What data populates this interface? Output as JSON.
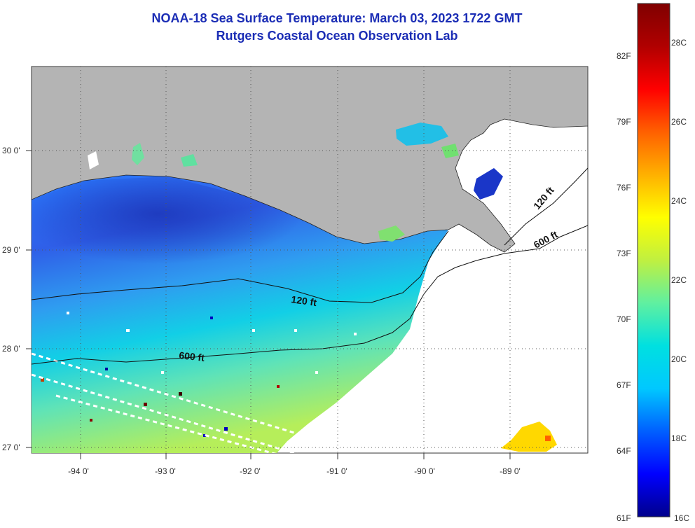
{
  "header": {
    "title_line1": "NOAA-18 Sea Surface Temperature:  March 03, 2023 1722 GMT",
    "title_line2": "Rutgers Coastal Ocean Observation Lab"
  },
  "map": {
    "lon_labels": [
      "-94 0'",
      "-93 0'",
      "-92 0'",
      "-91 0'",
      "-90 0'",
      "-89 0'"
    ],
    "lat_labels": [
      "30 0'",
      "29 0'",
      "28 0'",
      "27 0'"
    ],
    "contours": [
      {
        "label": "120 ft"
      },
      {
        "label": "600 ft"
      },
      {
        "label": "120 ft"
      },
      {
        "label": "600 ft"
      }
    ],
    "colors": {
      "land": "#b4b4b4",
      "no_data": "#ffffff"
    }
  },
  "colorbar": {
    "fahrenheit_labels": [
      "82F",
      "79F",
      "76F",
      "73F",
      "70F",
      "67F",
      "64F",
      "61F"
    ],
    "celsius_labels": [
      "28C",
      "26C",
      "24C",
      "22C",
      "20C",
      "18C",
      "16C"
    ],
    "gradient": [
      "#00008b",
      "#0000ff",
      "#0060ff",
      "#00c8ff",
      "#00e0e0",
      "#60f0a0",
      "#c0f040",
      "#ffff00",
      "#ffb000",
      "#ff6000",
      "#ff0000",
      "#b00000",
      "#800000"
    ]
  }
}
